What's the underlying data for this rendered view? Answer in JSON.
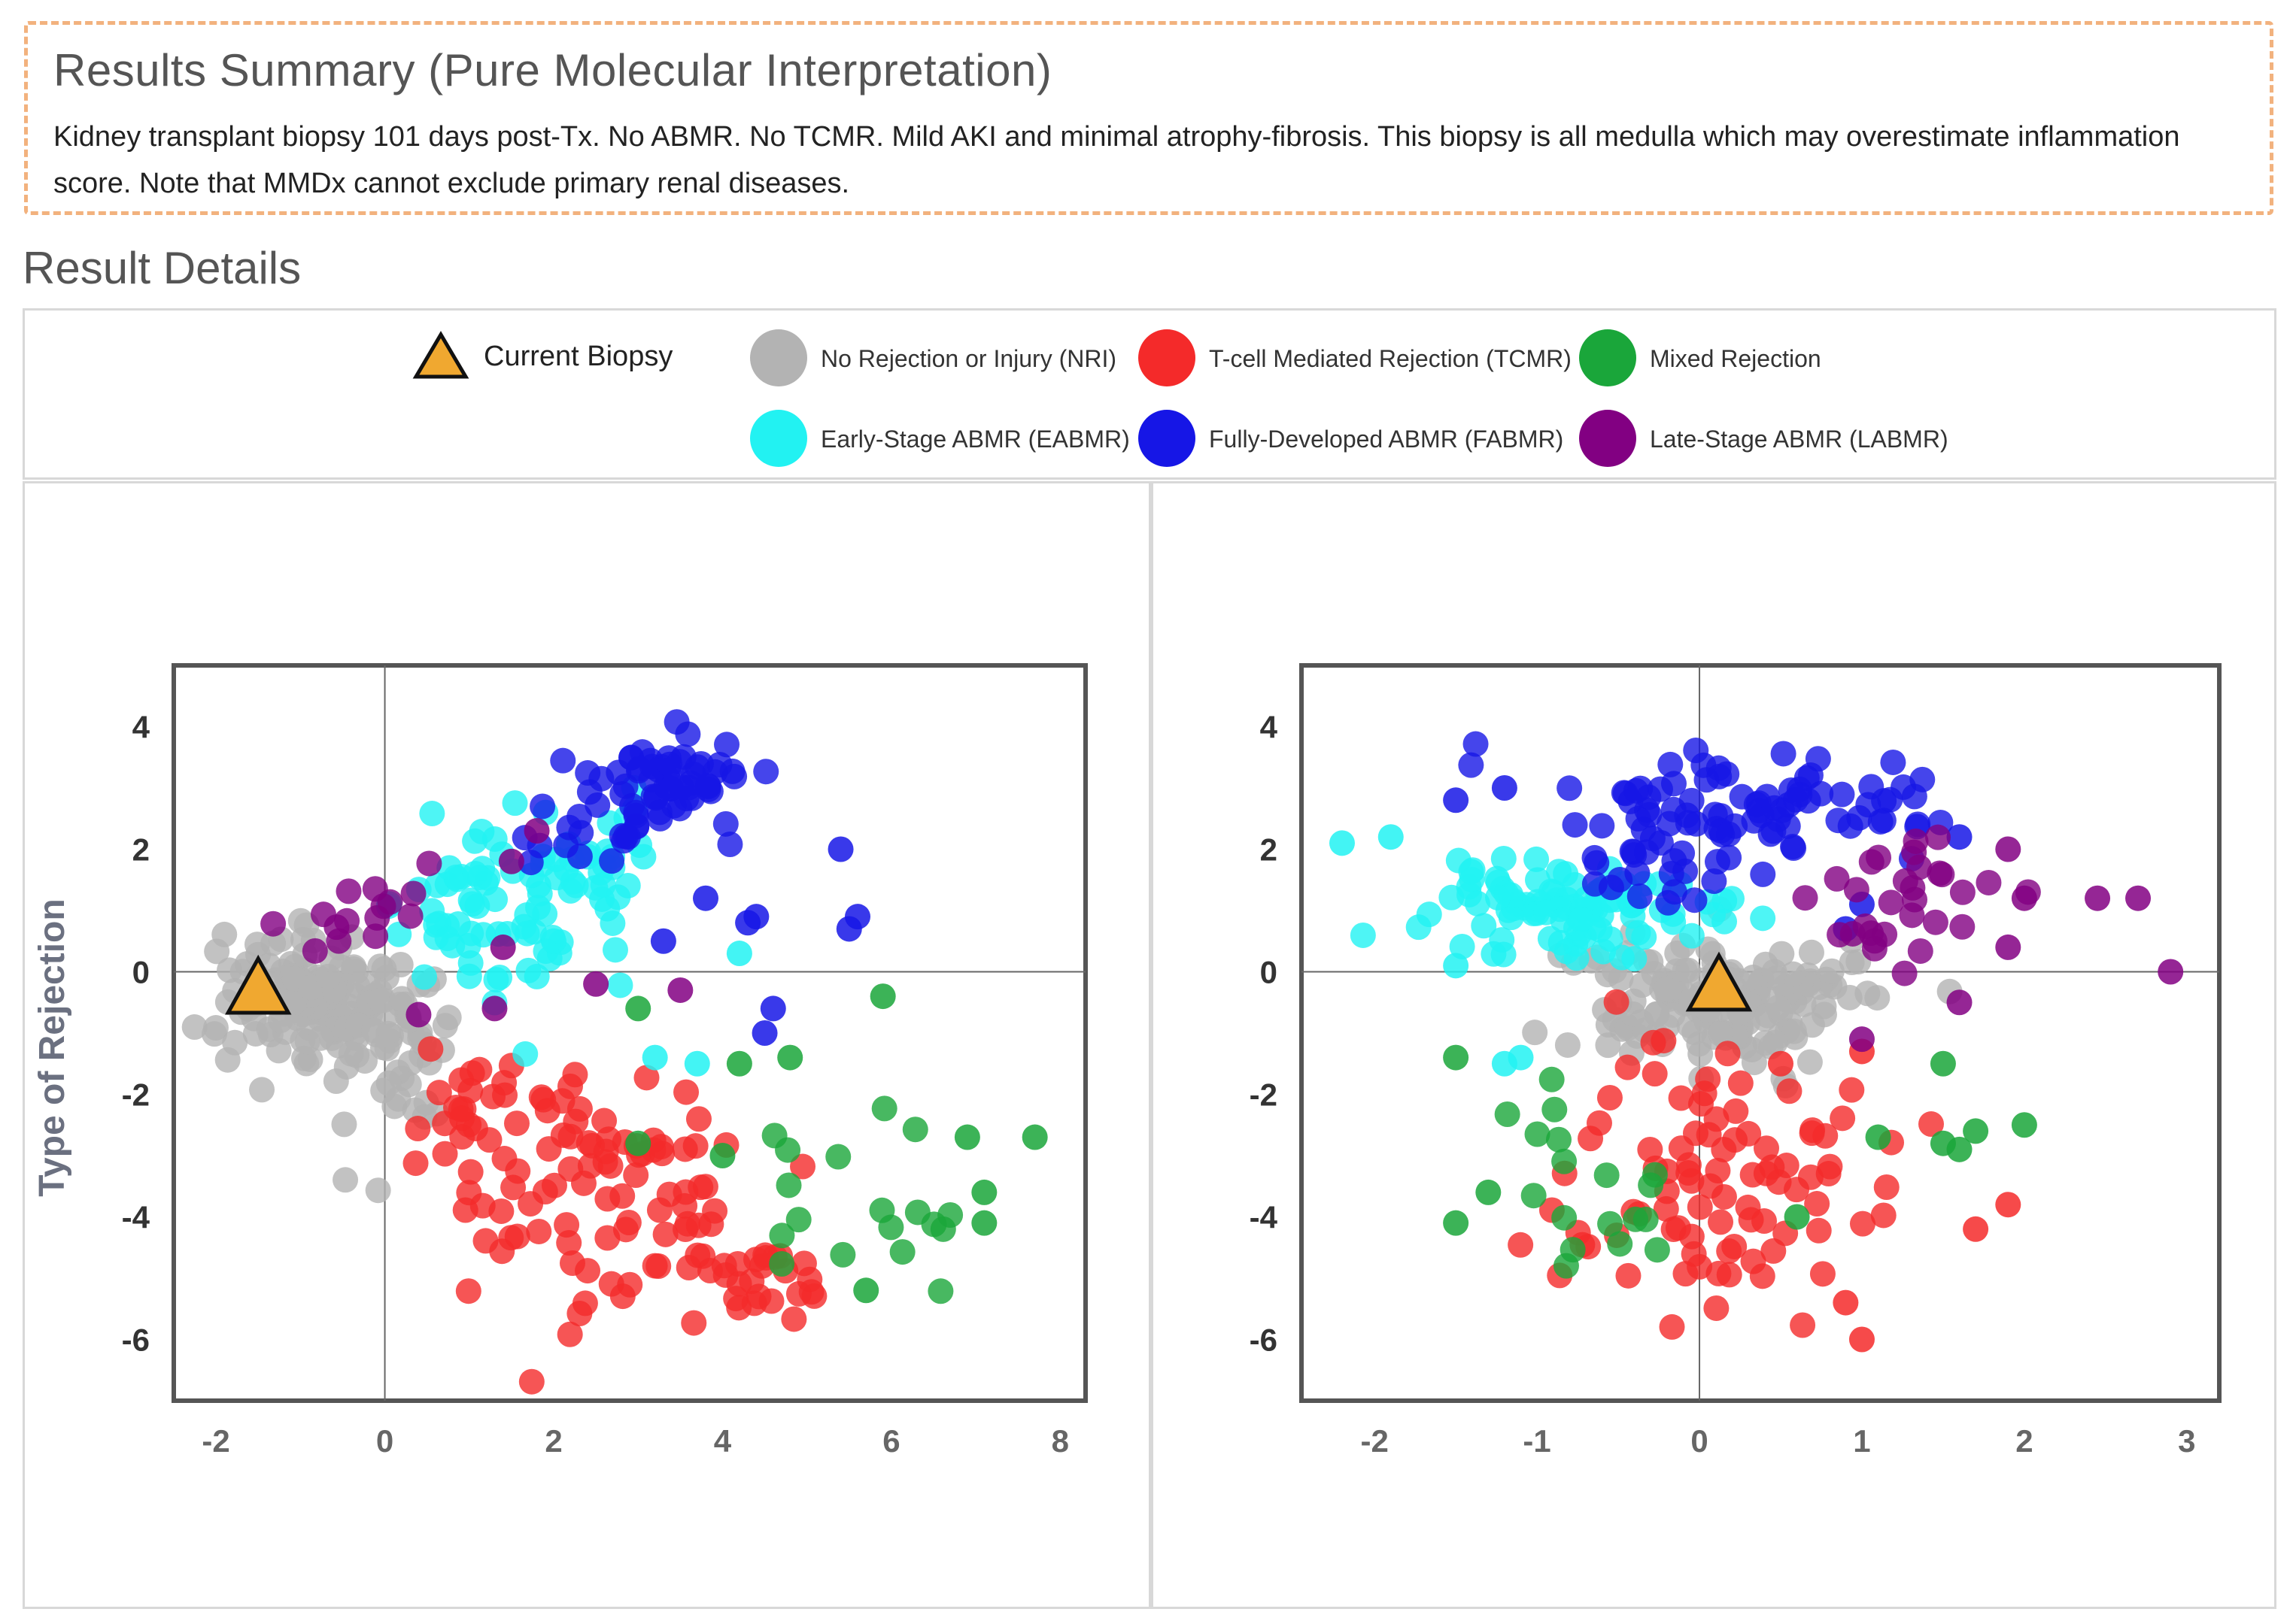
{
  "summary": {
    "title": "Results Summary (Pure Molecular Interpretation)",
    "text": "Kidney transplant biopsy 101 days post-Tx. No ABMR. No TCMR. Mild AKI and minimal atrophy-fibrosis. This biopsy is all medulla which may overestimate inflammation score. Note that MMDx cannot exclude primary renal diseases."
  },
  "details": {
    "title": "Result Details"
  },
  "legend": {
    "current": "Current Biopsy",
    "items": [
      {
        "key": "NRI",
        "label": "No Rejection or Injury (NRI)",
        "color": "#b3b3b3"
      },
      {
        "key": "TCMR",
        "label": "T-cell Mediated Rejection (TCMR)",
        "color": "#f42a2a"
      },
      {
        "key": "MIXED",
        "label": "Mixed Rejection",
        "color": "#1aa63a"
      },
      {
        "key": "EABMR",
        "label": "Early-Stage ABMR (EABMR)",
        "color": "#22f2f2"
      },
      {
        "key": "FABMR",
        "label": "Fully-Developed ABMR (FABMR)",
        "color": "#1616e6"
      },
      {
        "key": "LABMR",
        "label": "Late-Stage ABMR (LABMR)",
        "color": "#820082"
      }
    ]
  },
  "colors": {
    "NRI": "#b3b3b3",
    "TCMR": "#f42a2a",
    "MIXED": "#1aa63a",
    "EABMR": "#22f2f2",
    "FABMR": "#1616e6",
    "LABMR": "#820082",
    "current": "#f0a830"
  },
  "chart_data": [
    {
      "type": "scatter",
      "ylabel": "Type of Rejection",
      "xlim": [
        -2.5,
        8.3
      ],
      "ylim": [
        -7.0,
        5.0
      ],
      "xticks": [
        -2,
        0,
        2,
        4,
        6,
        8
      ],
      "yticks": [
        -6,
        -4,
        -2,
        0,
        2,
        4
      ],
      "current": [
        -1.5,
        -0.3
      ],
      "series": [
        {
          "name": "NRI",
          "clusters": [
            [
              -0.8,
              -0.4,
              0.55,
              0.55,
              150
            ],
            [
              0.1,
              -1.4,
              0.3,
              0.7,
              40
            ]
          ]
        },
        {
          "name": "TCMR",
          "clusters": [
            [
              2.5,
              -3.6,
              0.9,
              1.0,
              90
            ],
            [
              4.3,
              -5.0,
              0.5,
              0.4,
              25
            ],
            [
              1.0,
              -2.2,
              0.4,
              0.4,
              20
            ]
          ]
        },
        {
          "name": "MIXED",
          "clusters": [
            [
              5.6,
              -3.9,
              0.6,
              0.7,
              18
            ]
          ],
          "points": [
            [
              3.0,
              -0.6
            ],
            [
              3.0,
              -2.8
            ],
            [
              4.2,
              -1.5
            ],
            [
              4.8,
              -1.4
            ],
            [
              5.9,
              -0.4
            ],
            [
              6.9,
              -2.7
            ],
            [
              7.1,
              -3.6
            ],
            [
              7.1,
              -4.1
            ],
            [
              7.7,
              -2.7
            ],
            [
              4.0,
              -3.0
            ],
            [
              5.7,
              -5.2
            ]
          ]
        },
        {
          "name": "EABMR",
          "clusters": [
            [
              1.2,
              1.0,
              0.65,
              0.7,
              70
            ],
            [
              2.5,
              1.9,
              0.5,
              0.5,
              25
            ]
          ],
          "points": [
            [
              4.2,
              0.3
            ],
            [
              3.2,
              -1.4
            ],
            [
              3.7,
              -1.5
            ],
            [
              2.0,
              0.5
            ]
          ]
        },
        {
          "name": "FABMR",
          "clusters": [
            [
              3.5,
              3.2,
              0.4,
              0.35,
              50
            ],
            [
              2.5,
              2.4,
              0.5,
              0.4,
              25
            ]
          ],
          "points": [
            [
              5.4,
              2.0
            ],
            [
              5.6,
              0.9
            ],
            [
              5.5,
              0.7
            ],
            [
              4.4,
              0.9
            ],
            [
              4.3,
              0.8
            ],
            [
              4.6,
              -0.6
            ],
            [
              4.5,
              -1.0
            ],
            [
              3.3,
              0.5
            ],
            [
              3.8,
              1.2
            ]
          ]
        },
        {
          "name": "LABMR",
          "clusters": [
            [
              -0.4,
              1.0,
              0.5,
              0.3,
              15
            ]
          ],
          "points": [
            [
              1.5,
              1.8
            ],
            [
              1.4,
              0.4
            ],
            [
              1.3,
              -0.6
            ],
            [
              0.4,
              -0.7
            ],
            [
              3.5,
              -0.3
            ],
            [
              2.5,
              -0.2
            ],
            [
              1.8,
              2.3
            ]
          ]
        }
      ]
    },
    {
      "type": "scatter",
      "ylabel": "",
      "xlim": [
        -2.45,
        3.2
      ],
      "ylim": [
        -7.0,
        5.0
      ],
      "xticks": [
        -2,
        -1,
        0,
        1,
        2,
        3
      ],
      "yticks": [
        -6,
        -4,
        -2,
        0,
        2,
        4
      ],
      "current": [
        0.12,
        -0.25
      ],
      "series": [
        {
          "name": "NRI",
          "clusters": [
            [
              0.1,
              -0.3,
              0.45,
              0.45,
              140
            ],
            [
              0.2,
              -1.3,
              0.35,
              0.4,
              20
            ]
          ]
        },
        {
          "name": "TCMR",
          "clusters": [
            [
              0.1,
              -3.5,
              0.45,
              1.2,
              90
            ]
          ],
          "points": [
            [
              1.0,
              -1.3
            ],
            [
              1.9,
              -3.8
            ],
            [
              1.7,
              -4.2
            ],
            [
              0.9,
              -5.4
            ],
            [
              1.0,
              -6.0
            ],
            [
              0.5,
              -1.5
            ]
          ]
        },
        {
          "name": "MIXED",
          "clusters": [
            [
              -0.7,
              -3.8,
              0.35,
              0.9,
              18
            ]
          ],
          "points": [
            [
              -1.5,
              -1.4
            ],
            [
              -1.3,
              -3.6
            ],
            [
              1.1,
              -2.7
            ],
            [
              1.5,
              -1.5
            ],
            [
              1.5,
              -2.8
            ],
            [
              1.6,
              -2.9
            ],
            [
              1.7,
              -2.6
            ],
            [
              2.0,
              -2.5
            ],
            [
              0.6,
              -4.0
            ],
            [
              -1.5,
              -4.1
            ]
          ]
        },
        {
          "name": "EABMR",
          "clusters": [
            [
              -1.0,
              1.1,
              0.4,
              0.45,
              70
            ],
            [
              -0.4,
              0.8,
              0.4,
              0.4,
              30
            ]
          ],
          "points": [
            [
              -2.2,
              2.1
            ],
            [
              -1.9,
              2.2
            ],
            [
              -1.5,
              0.1
            ],
            [
              -1.1,
              -1.4
            ],
            [
              -1.2,
              -1.5
            ]
          ]
        },
        {
          "name": "FABMR",
          "clusters": [
            [
              0.3,
              2.8,
              0.6,
              0.4,
              80
            ],
            [
              -0.2,
              1.7,
              0.35,
              0.35,
              25
            ]
          ],
          "points": [
            [
              -1.5,
              2.8
            ],
            [
              -1.2,
              3.0
            ],
            [
              1.0,
              1.1
            ],
            [
              1.6,
              2.2
            ],
            [
              0.9,
              0.7
            ]
          ]
        },
        {
          "name": "LABMR",
          "clusters": [
            [
              1.5,
              1.4,
              0.3,
              0.4,
              20
            ],
            [
              1.0,
              0.6,
              0.2,
              0.3,
              10
            ]
          ],
          "points": [
            [
              2.7,
              1.2
            ],
            [
              2.45,
              1.2
            ],
            [
              2.9,
              0.0
            ],
            [
              1.9,
              2.0
            ],
            [
              1.6,
              -0.5
            ],
            [
              1.0,
              -1.1
            ],
            [
              1.9,
              0.4
            ],
            [
              2.0,
              1.2
            ]
          ]
        }
      ]
    }
  ]
}
